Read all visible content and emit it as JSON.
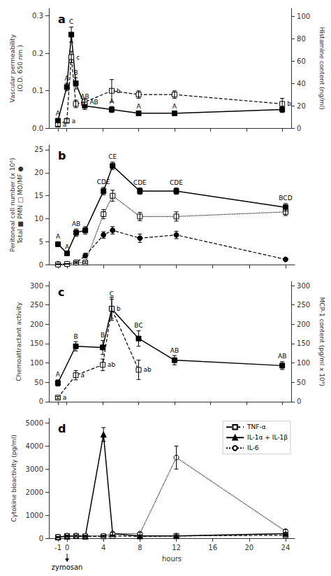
{
  "chart_data": [
    {
      "type": "line",
      "title": "a",
      "x": [
        -1,
        0,
        0.5,
        1,
        2,
        5,
        8,
        12,
        24
      ],
      "xlim": [
        -2,
        25
      ],
      "xticks": [
        -1,
        0,
        4,
        8,
        12,
        16,
        20,
        24
      ],
      "ylabel": "Vascular permeability\n(O.D. 650 nm )",
      "ylim": [
        0,
        0.32
      ],
      "yticks": [
        {
          "value": 0,
          "label": "0.0"
        },
        0.1,
        0.2,
        0.3
      ],
      "y2label": "Histamine content (ng/ml)",
      "y2lim": [
        0,
        107
      ],
      "y2ticks": [
        0,
        20,
        40,
        60,
        80,
        100
      ],
      "grid": false,
      "tick_labels": "y",
      "series": [
        {
          "color": "#000000",
          "marker": "square",
          "line_style": "solid",
          "values": [
            0.02,
            0.11,
            0.25,
            0.12,
            0.06,
            0.05,
            0.04,
            0.04,
            0.05
          ],
          "errors": [
            0.005,
            0.01,
            0.02,
            0.015,
            0.01,
            0.008,
            0.005,
            0.005,
            0.008
          ],
          "annotations": [
            "A",
            "A",
            "C",
            "B",
            "AB",
            "A",
            "A",
            "A",
            null
          ]
        },
        {
          "color": "#000000",
          "marker": "open_square",
          "line_style": "dashed",
          "values": [
            0.01,
            0.02,
            0.19,
            0.065,
            0.07,
            0.1,
            0.09,
            0.09,
            0.065
          ],
          "errors": [
            0.005,
            0.005,
            0.015,
            0.01,
            0.01,
            0.03,
            0.01,
            0.01,
            0.015
          ],
          "annotations": [
            "a",
            "a",
            "c",
            "b",
            "AB",
            "b",
            null,
            null,
            "b"
          ]
        }
      ]
    },
    {
      "type": "line",
      "title": "b",
      "x": [
        -1,
        0,
        1,
        2,
        4,
        5,
        8,
        12,
        24
      ],
      "xlim": [
        -2,
        25
      ],
      "xticks": [
        -1,
        0,
        4,
        8,
        12,
        16,
        20,
        24
      ],
      "ylabel": "Peritoneal cell number (x 10⁶)\nTotal ■ PMN □ MO/MF ●",
      "ylim": [
        0,
        26
      ],
      "yticks": [
        0,
        5,
        10,
        15,
        20,
        25
      ],
      "grid": false,
      "tick_labels": "y",
      "series": [
        {
          "color": "#000000",
          "marker": "square",
          "line_style": "solid",
          "values": [
            4.5,
            2.5,
            7.0,
            7.5,
            16.0,
            21.5,
            16.0,
            16.0,
            12.5
          ],
          "errors": [
            0.5,
            0.3,
            0.8,
            0.8,
            0.8,
            0.8,
            0.7,
            0.7,
            0.8
          ],
          "annotations": [
            "A",
            "A",
            "AB",
            null,
            "CDE",
            "CE",
            "CDE",
            "CDE",
            "BCD"
          ]
        },
        {
          "color": "#000000",
          "marker": "circle",
          "line_style": "dashed",
          "values": [
            0.2,
            0.2,
            0.5,
            2.0,
            6.5,
            7.5,
            5.8,
            6.5,
            1.2
          ],
          "errors": [
            0.05,
            0.05,
            0.15,
            0.5,
            0.7,
            0.8,
            0.9,
            0.8,
            0.3
          ]
        },
        {
          "color": "#000000",
          "marker": "open_square",
          "line_style": "dotted",
          "values": [
            0.1,
            0.2,
            0.5,
            0.5,
            11.0,
            15.0,
            10.5,
            10.5,
            11.5
          ],
          "errors": [
            0.05,
            0.05,
            0.2,
            0.2,
            1.0,
            1.2,
            0.9,
            1.0,
            0.8
          ]
        }
      ]
    },
    {
      "type": "line",
      "title": "c",
      "x": [
        -1,
        1,
        4,
        5,
        8,
        12,
        24
      ],
      "xlim": [
        -2,
        25
      ],
      "xticks": [
        -1,
        0,
        4,
        8,
        12,
        16,
        20,
        24
      ],
      "ylabel": "Chemoattractant activity",
      "ylim": [
        0,
        310
      ],
      "yticks": [
        0,
        50,
        100,
        150,
        200,
        250,
        300
      ],
      "y2label": "MCP-1 content (pg/ml x 10⁹)",
      "y2lim": [
        0,
        310
      ],
      "y2ticks": [
        0,
        50,
        100,
        150,
        200,
        250,
        300
      ],
      "grid": false,
      "tick_labels": "y",
      "series": [
        {
          "color": "#000000",
          "marker": "square",
          "line_style": "solid",
          "values": [
            48,
            143,
            140,
            240,
            163,
            107,
            93
          ],
          "errors": [
            8,
            12,
            18,
            25,
            20,
            12,
            10
          ],
          "annotations": [
            "A",
            "B",
            "B",
            "C",
            "BC",
            "AB",
            "AB"
          ]
        },
        {
          "color": "#000000",
          "marker": "open_square",
          "line_style": "dashed",
          "values": [
            10,
            68,
            95,
            240,
            82,
            null,
            null
          ],
          "errors": [
            3,
            12,
            15,
            30,
            25,
            null,
            null
          ],
          "annotations": [
            "a",
            "a",
            "ab",
            "b",
            "ab",
            null,
            null
          ]
        }
      ]
    },
    {
      "type": "line",
      "title": "d",
      "x": [
        -1,
        0,
        1,
        2,
        4,
        5,
        8,
        12,
        24
      ],
      "xlim": [
        -2,
        25
      ],
      "xticks": [
        -1,
        0,
        4,
        8,
        12,
        16,
        20,
        24
      ],
      "xlabel": "hours",
      "ylabel": "Cytokine bioactivity (pg/ml)",
      "ylim": [
        0,
        5200
      ],
      "yticks": [
        0,
        1000,
        2000,
        3000,
        4000,
        5000
      ],
      "grid": false,
      "legend": "upper right",
      "annotations": [
        {
          "text": "zymosan",
          "x": 0
        }
      ],
      "series": [
        {
          "name": "TNF-α",
          "color": "#000000",
          "marker": "open_square",
          "line_style": "dashed",
          "values": [
            50,
            100,
            100,
            80,
            80,
            100,
            80,
            100,
            130
          ],
          "errors": [
            20,
            30,
            30,
            25,
            25,
            30,
            25,
            30,
            35
          ]
        },
        {
          "name": "IL-1α + IL-1β",
          "color": "#000000",
          "marker": "triangle",
          "line_style": "solid",
          "values": [
            50,
            80,
            100,
            80,
            4500,
            200,
            100,
            100,
            200
          ],
          "errors": [
            20,
            25,
            30,
            25,
            300,
            60,
            30,
            30,
            50
          ]
        },
        {
          "name": "IL-6",
          "color": "#000000",
          "marker": "open_circle",
          "line_style": "dotted",
          "values": [
            50,
            100,
            100,
            100,
            100,
            200,
            200,
            3500,
            300
          ],
          "errors": [
            20,
            30,
            30,
            30,
            30,
            60,
            60,
            500,
            80
          ]
        }
      ]
    }
  ]
}
